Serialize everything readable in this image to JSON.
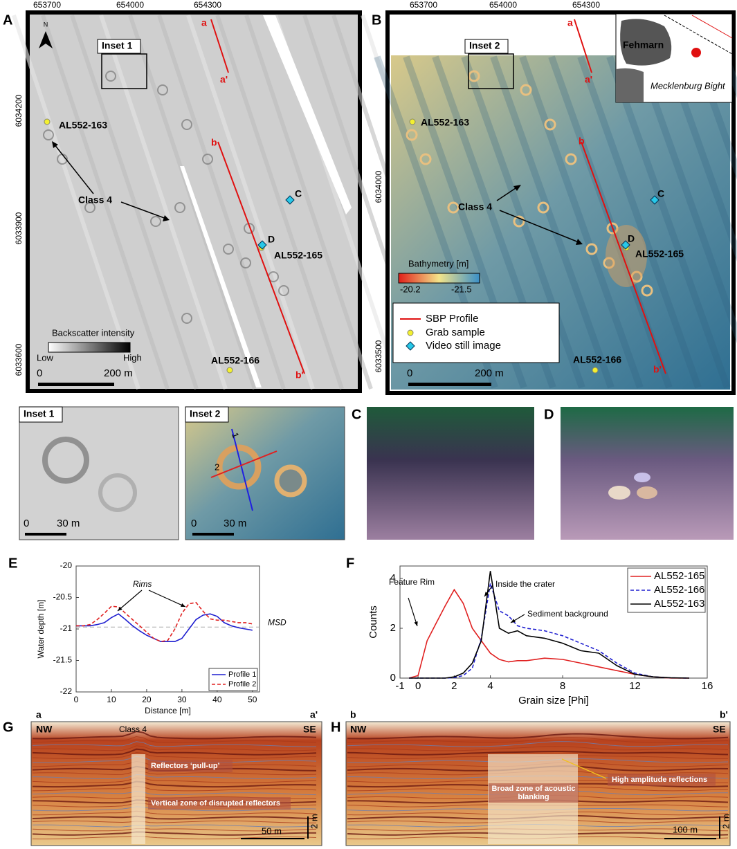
{
  "panel_labels": [
    "A",
    "B",
    "C",
    "D",
    "E",
    "F",
    "G",
    "H"
  ],
  "map_a": {
    "xtick_labels": [
      "653700",
      "654000",
      "654300"
    ],
    "ytick_labels": [
      "6034200",
      "6033900",
      "6033600"
    ],
    "north": "N",
    "inset_label": "Inset 1",
    "profile_labels": [
      "a",
      "a'",
      "b",
      "b'"
    ],
    "sample_labels": [
      "AL552-163",
      "AL552-165",
      "AL552-166"
    ],
    "video_labels": [
      "C",
      "D"
    ],
    "class_label": "Class 4",
    "colorbar_title": "Backscatter intensity",
    "colorbar_low": "Low",
    "colorbar_high": "High",
    "scale_labels": [
      "0",
      "200 m"
    ]
  },
  "map_b": {
    "xtick_labels": [
      "653700",
      "654000",
      "654300"
    ],
    "ytick_labels": [
      "6034000",
      "6033500"
    ],
    "inset_label": "Inset 2",
    "profile_labels": [
      "a",
      "a'",
      "b",
      "b'"
    ],
    "sample_labels": [
      "AL552-163",
      "AL552-165",
      "AL552-166"
    ],
    "video_labels": [
      "C",
      "D"
    ],
    "class_label": "Class 4",
    "colorbar_title": "Bathymetry [m]",
    "colorbar_low": "-20.2",
    "colorbar_high": "-21.5",
    "legend": [
      "SBP Profile",
      "Grab sample",
      "Video still image"
    ],
    "scale_labels": [
      "0",
      "200 m"
    ],
    "overview_labels": [
      "Fehmarn",
      "Mecklenburg Bight"
    ]
  },
  "insets": {
    "inset1": {
      "title": "Inset 1",
      "scale_labels": [
        "0",
        "30 m"
      ]
    },
    "inset2": {
      "title": "Inset 2",
      "profile_numbers": [
        "1",
        "2"
      ],
      "scale_labels": [
        "0",
        "30 m"
      ]
    }
  },
  "chart_data": [
    {
      "type": "line",
      "xlabel": "Distance [m]",
      "ylabel": "Water depth [m]",
      "annotations": [
        "Rims"
      ],
      "reference_line": {
        "label": "MSD",
        "value": -20.97
      },
      "x": [
        0,
        2,
        4,
        6,
        8,
        10,
        12,
        14,
        16,
        18,
        20,
        22,
        24,
        26,
        28,
        30,
        32,
        34,
        36,
        38,
        40,
        42,
        44,
        46,
        48,
        50
      ],
      "series": [
        {
          "name": "Profile 1",
          "color": "#1f1fd0",
          "dash": false,
          "values": [
            -20.95,
            -20.95,
            -20.95,
            -20.93,
            -20.9,
            -20.82,
            -20.76,
            -20.85,
            -20.95,
            -21.03,
            -21.1,
            -21.15,
            -21.2,
            -21.2,
            -21.2,
            -21.15,
            -21.0,
            -20.85,
            -20.78,
            -20.76,
            -20.8,
            -20.9,
            -20.95,
            -20.98,
            -21.0,
            -21.02
          ]
        },
        {
          "name": "Profile 2",
          "color": "#e02020",
          "dash": true,
          "values": [
            -20.95,
            -20.95,
            -20.93,
            -20.85,
            -20.75,
            -20.64,
            -20.65,
            -20.75,
            -20.85,
            -20.95,
            -21.05,
            -21.15,
            -21.2,
            -21.18,
            -21.0,
            -20.75,
            -20.6,
            -20.58,
            -20.72,
            -20.84,
            -20.86,
            -20.86,
            -20.88,
            -20.9,
            -20.9,
            -20.92
          ]
        }
      ],
      "xlim": [
        0,
        52
      ],
      "ylim": [
        -22,
        -20
      ],
      "xticks": [
        0,
        10,
        20,
        30,
        40,
        50
      ],
      "yticks": [
        -22,
        -21.5,
        -21,
        -20.5,
        -20
      ],
      "legend": "lower right"
    },
    {
      "type": "line",
      "xlabel": "Grain size [Phi]",
      "ylabel": "Counts",
      "annotations": [
        "Feature Rim",
        "Inside the crater",
        "Sediment background"
      ],
      "x": [
        -0.5,
        0,
        0.5,
        1,
        1.5,
        2,
        2.5,
        3,
        3.5,
        4,
        4.5,
        5,
        5.5,
        6,
        7,
        8,
        9,
        10,
        11,
        12,
        13,
        14,
        15
      ],
      "series": [
        {
          "name": "AL552-165",
          "color": "#e02020",
          "dash": false,
          "values": [
            0,
            0.1,
            1.5,
            2.2,
            2.9,
            3.55,
            3.0,
            2.0,
            1.5,
            1.0,
            0.75,
            0.65,
            0.7,
            0.7,
            0.8,
            0.75,
            0.6,
            0.45,
            0.3,
            0.15,
            0.05,
            0,
            0
          ]
        },
        {
          "name": "AL552-166",
          "color": "#2020d0",
          "dash": true,
          "values": [
            0,
            0,
            0,
            0,
            0,
            0.02,
            0.1,
            0.4,
            1.6,
            3.8,
            2.7,
            2.5,
            2.1,
            2.0,
            1.9,
            1.7,
            1.4,
            1.1,
            0.6,
            0.2,
            0.05,
            0.01,
            0
          ]
        },
        {
          "name": "AL552-163",
          "color": "#000000",
          "dash": false,
          "values": [
            0,
            0,
            0,
            0,
            0,
            0.05,
            0.2,
            0.6,
            1.5,
            4.3,
            2.0,
            1.8,
            1.9,
            1.7,
            1.6,
            1.4,
            1.1,
            1.0,
            0.5,
            0.15,
            0.05,
            0.01,
            0
          ]
        }
      ],
      "xlim": [
        -1,
        16
      ],
      "ylim": [
        0,
        4.5
      ],
      "xticks": [
        -1,
        0,
        2,
        4,
        8,
        12,
        16
      ],
      "yticks": [
        0,
        2,
        4
      ],
      "legend": "upper right"
    }
  ],
  "profile_g": {
    "ends": [
      "a",
      "a'"
    ],
    "directions": [
      "NW",
      "SE"
    ],
    "annotations": [
      "Class 4",
      "Reflectors ‘pull-up’",
      "Vertical zone of disrupted reflectors"
    ],
    "scale_labels": [
      "50 m",
      "2 m"
    ]
  },
  "profile_h": {
    "ends": [
      "b",
      "b'"
    ],
    "directions": [
      "NW",
      "SE"
    ],
    "annotations": [
      "High amplitude reflections",
      "Broad zone of acoustic blanking"
    ],
    "scale_labels": [
      "100 m",
      "2 m"
    ]
  }
}
